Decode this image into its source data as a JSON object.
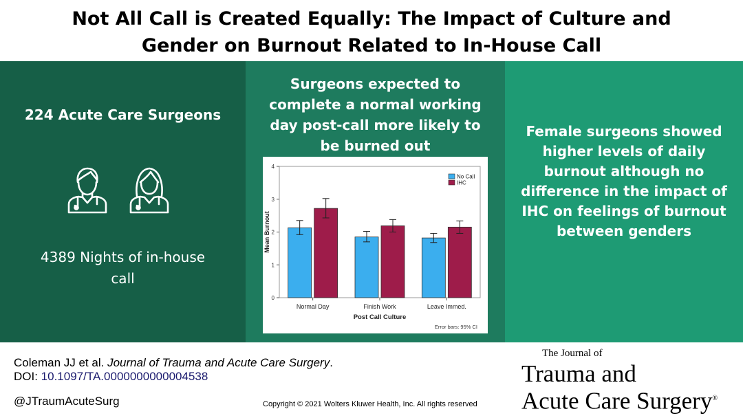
{
  "title": {
    "line1": "Not All Call is Created Equally: The Impact of Culture and",
    "line2": "Gender on Burnout Related to In-House Call"
  },
  "left_panel": {
    "surgeons": "224 Acute Care Surgeons",
    "nights_line1": "4389 Nights of in-house",
    "nights_line2": "call",
    "icons": [
      "male-surgeon-icon",
      "female-surgeon-icon"
    ]
  },
  "middle_panel": {
    "heading_lines": [
      "Surgeons expected to",
      "complete a normal working",
      "day post-call more likely to",
      "be burned out"
    ]
  },
  "right_panel": {
    "lines": [
      "Female surgeons showed",
      "higher levels of daily",
      "burnout although no",
      "difference in the impact of",
      "IHC on feelings of burnout",
      "between genders"
    ]
  },
  "chart_data": {
    "type": "bar",
    "categories": [
      "Normal Day",
      "Finish Work",
      "Leave Immed."
    ],
    "series": [
      {
        "name": "No Call",
        "values": [
          2.13,
          1.85,
          1.82
        ],
        "error_low": [
          1.92,
          1.7,
          1.68
        ],
        "error_high": [
          2.35,
          2.02,
          1.96
        ],
        "color": "#3baeee"
      },
      {
        "name": "IHC",
        "values": [
          2.72,
          2.19,
          2.15
        ],
        "error_low": [
          2.43,
          2.0,
          1.96
        ],
        "error_high": [
          3.02,
          2.38,
          2.34
        ],
        "color": "#9e1c4a"
      }
    ],
    "xlabel": "Post Call Culture",
    "ylabel": "Mean Burnout",
    "ylim": [
      0,
      4
    ],
    "yticks": [
      0,
      1,
      2,
      3,
      4
    ],
    "legend_position": "top-right",
    "note": "Error bars: 95% CI",
    "grid": false
  },
  "footer": {
    "citation_authors": "Coleman JJ et al. ",
    "citation_journal": "Journal of Trauma and Acute Care Surgery",
    "citation_end": ".",
    "doi_label": "DOI: ",
    "doi_value": "10.1097/TA.0000000000004538",
    "handle": "@JTraumAcuteSurg",
    "copyright": "Copyright © 2021  Wolters Kluwer Health, Inc. All rights reserved",
    "journal_small": "The Journal of",
    "journal_line1": "Trauma and",
    "journal_line2": "Acute Care Surgery",
    "journal_reg": "®"
  }
}
